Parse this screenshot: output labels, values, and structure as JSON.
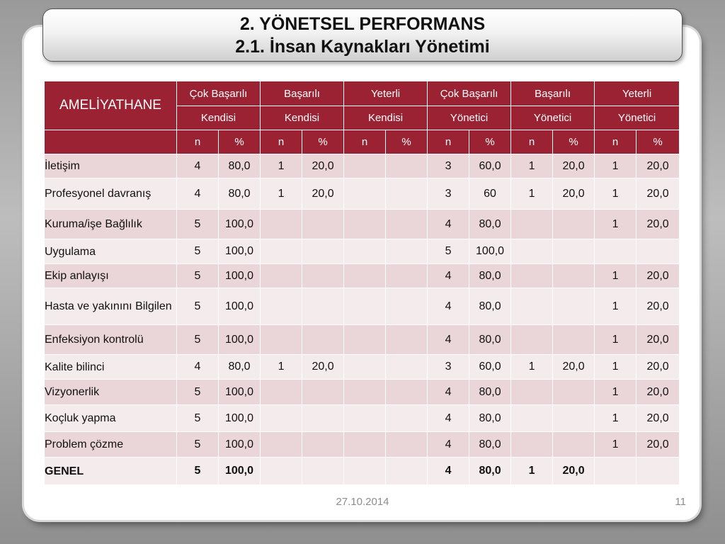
{
  "title": {
    "line1": "2. YÖNETSEL PERFORMANS",
    "line2": "2.1. İnsan Kaynakları Yönetimi"
  },
  "table": {
    "corner_label": "AMELİYATHANE",
    "groups": [
      "Çok Başarılı",
      "Başarılı",
      "Yeterli",
      "Çok Başarılı",
      "Başarılı",
      "Yeterli"
    ],
    "evaluators": [
      "Kendisi",
      "Kendisi",
      "Kendisi",
      "Yönetici",
      "Yönetici",
      "Yönetici"
    ],
    "subheaders": [
      "n",
      "%",
      "n",
      "%",
      "n",
      "%",
      "n",
      "%",
      "n",
      "%",
      "n",
      "%"
    ],
    "rows": [
      {
        "label": "İletişim",
        "cells": [
          "4",
          "80,0",
          "1",
          "20,0",
          "",
          "",
          "3",
          "60,0",
          "1",
          "20,0",
          "1",
          "20,0"
        ]
      },
      {
        "label": "Profesyonel davranış",
        "cells": [
          "4",
          "80,0",
          "1",
          "20,0",
          "",
          "",
          "3",
          "60",
          "1",
          "20,0",
          "1",
          "20,0"
        ]
      },
      {
        "label": "Kuruma/işe Bağlılık",
        "cells": [
          "5",
          "100,0",
          "",
          "",
          "",
          "",
          "4",
          "80,0",
          "",
          "",
          "1",
          "20,0"
        ]
      },
      {
        "label": "Uygulama",
        "cells": [
          "5",
          "100,0",
          "",
          "",
          "",
          "",
          "5",
          "100,0",
          "",
          "",
          "",
          ""
        ]
      },
      {
        "label": "Ekip anlayışı",
        "cells": [
          "5",
          "100,0",
          "",
          "",
          "",
          "",
          "4",
          "80,0",
          "",
          "",
          "1",
          "20,0"
        ]
      },
      {
        "label": "Hasta ve yakınını Bilgilen",
        "cells": [
          "5",
          "100,0",
          "",
          "",
          "",
          "",
          "4",
          "80,0",
          "",
          "",
          "1",
          "20,0"
        ]
      },
      {
        "label": "Enfeksiyon kontrolü",
        "cells": [
          "5",
          "100,0",
          "",
          "",
          "",
          "",
          "4",
          "80,0",
          "",
          "",
          "1",
          "20,0"
        ]
      },
      {
        "label": "Kalite bilinci",
        "cells": [
          "4",
          "80,0",
          "1",
          "20,0",
          "",
          "",
          "3",
          "60,0",
          "1",
          "20,0",
          "1",
          "20,0"
        ]
      },
      {
        "label": "Vizyonerlik",
        "cells": [
          "5",
          "100,0",
          "",
          "",
          "",
          "",
          "4",
          "80,0",
          "",
          "",
          "1",
          "20,0"
        ]
      },
      {
        "label": "Koçluk yapma",
        "cells": [
          "5",
          "100,0",
          "",
          "",
          "",
          "",
          "4",
          "80,0",
          "",
          "",
          "1",
          "20,0"
        ]
      },
      {
        "label": "Problem çözme",
        "cells": [
          "5",
          "100,0",
          "",
          "",
          "",
          "",
          "4",
          "80,0",
          "",
          "",
          "1",
          "20,0"
        ]
      },
      {
        "label": "GENEL",
        "cells": [
          "5",
          "100,0",
          "",
          "",
          "",
          "",
          "4",
          "80,0",
          "1",
          "20,0",
          "",
          ""
        ],
        "bold": true
      }
    ]
  },
  "footer": {
    "date": "27.10.2014",
    "page": "11"
  },
  "colors": {
    "header_bg": "#9b2232",
    "row_odd": "#ead6d8",
    "row_even": "#f4ecec"
  }
}
